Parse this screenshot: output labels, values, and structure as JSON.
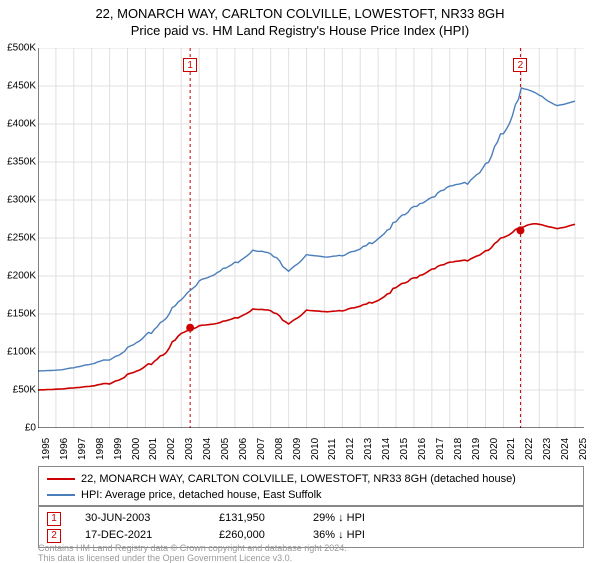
{
  "titles": {
    "line1": "22, MONARCH WAY, CARLTON COLVILLE, LOWESTOFT, NR33 8GH",
    "line2": "Price paid vs. HM Land Registry's House Price Index (HPI)"
  },
  "chart": {
    "type": "line",
    "background_color": "#ffffff",
    "grid_color": "#e0e0e0",
    "axis_color": "#000000",
    "x": {
      "min": 1995,
      "max": 2025.5,
      "ticks": [
        1995,
        1996,
        1997,
        1998,
        1999,
        2000,
        2001,
        2002,
        2003,
        2004,
        2005,
        2006,
        2007,
        2008,
        2009,
        2010,
        2011,
        2012,
        2013,
        2014,
        2015,
        2016,
        2017,
        2018,
        2019,
        2020,
        2021,
        2022,
        2023,
        2024,
        2025
      ],
      "label_fontsize": 10
    },
    "y": {
      "min": 0,
      "max": 500000,
      "tick_step": 50000,
      "tick_labels": [
        "£0",
        "£50K",
        "£100K",
        "£150K",
        "£200K",
        "£250K",
        "£300K",
        "£350K",
        "£400K",
        "£450K",
        "£500K"
      ],
      "label_fontsize": 10
    },
    "series": [
      {
        "name": "property",
        "color": "#cc0000",
        "width": 1.6,
        "label": "22, MONARCH WAY, CARLTON COLVILLE, LOWESTOFT, NR33 8GH (detached house)",
        "points": [
          [
            1995,
            50000
          ],
          [
            1996,
            51000
          ],
          [
            1997,
            53000
          ],
          [
            1998,
            55000
          ],
          [
            1999,
            60000
          ],
          [
            2000,
            70000
          ],
          [
            2001,
            80000
          ],
          [
            2002,
            100000
          ],
          [
            2003,
            125000
          ],
          [
            2004,
            135000
          ],
          [
            2005,
            138000
          ],
          [
            2006,
            145000
          ],
          [
            2007,
            157000
          ],
          [
            2008,
            155000
          ],
          [
            2009,
            140000
          ],
          [
            2010,
            155000
          ],
          [
            2011,
            153000
          ],
          [
            2012,
            155000
          ],
          [
            2013,
            160000
          ],
          [
            2014,
            170000
          ],
          [
            2015,
            185000
          ],
          [
            2016,
            198000
          ],
          [
            2017,
            210000
          ],
          [
            2018,
            218000
          ],
          [
            2019,
            222000
          ],
          [
            2020,
            232000
          ],
          [
            2021,
            252000
          ],
          [
            2022,
            268000
          ],
          [
            2023,
            268000
          ],
          [
            2024,
            263000
          ],
          [
            2025,
            268000
          ]
        ]
      },
      {
        "name": "hpi",
        "color": "#4a7ebb",
        "width": 1.4,
        "label": "HPI: Average price, detached house, East Suffolk",
        "points": [
          [
            1995,
            75000
          ],
          [
            1996,
            76000
          ],
          [
            1997,
            80000
          ],
          [
            1998,
            84000
          ],
          [
            1999,
            92000
          ],
          [
            2000,
            105000
          ],
          [
            2001,
            120000
          ],
          [
            2002,
            145000
          ],
          [
            2003,
            170000
          ],
          [
            2004,
            195000
          ],
          [
            2005,
            205000
          ],
          [
            2006,
            218000
          ],
          [
            2007,
            235000
          ],
          [
            2008,
            230000
          ],
          [
            2009,
            210000
          ],
          [
            2010,
            228000
          ],
          [
            2011,
            225000
          ],
          [
            2012,
            228000
          ],
          [
            2013,
            235000
          ],
          [
            2014,
            252000
          ],
          [
            2015,
            272000
          ],
          [
            2016,
            292000
          ],
          [
            2017,
            305000
          ],
          [
            2018,
            318000
          ],
          [
            2019,
            325000
          ],
          [
            2020,
            345000
          ],
          [
            2021,
            392000
          ],
          [
            2022,
            450000
          ],
          [
            2023,
            438000
          ],
          [
            2024,
            425000
          ],
          [
            2025,
            430000
          ]
        ]
      }
    ],
    "markers": [
      {
        "n": "1",
        "x": 2003.5,
        "y_line": true,
        "color": "#cc0000",
        "point_y": 131950
      },
      {
        "n": "2",
        "x": 2021.95,
        "y_line": true,
        "color": "#cc0000",
        "point_y": 260000
      }
    ]
  },
  "legend": {
    "items": [
      {
        "color": "#cc0000",
        "text": "22, MONARCH WAY, CARLTON COLVILLE, LOWESTOFT, NR33 8GH (detached house)"
      },
      {
        "color": "#4a7ebb",
        "text": "HPI: Average price, detached house, East Suffolk"
      }
    ]
  },
  "marker_table": {
    "rows": [
      {
        "n": "1",
        "color": "#cc0000",
        "date": "30-JUN-2003",
        "price": "£131,950",
        "pct": "29% ↓ HPI"
      },
      {
        "n": "2",
        "color": "#cc0000",
        "date": "17-DEC-2021",
        "price": "£260,000",
        "pct": "36% ↓ HPI"
      }
    ]
  },
  "footer": {
    "line1": "Contains HM Land Registry data © Crown copyright and database right 2024.",
    "line2": "This data is licensed under the Open Government Licence v3.0."
  }
}
